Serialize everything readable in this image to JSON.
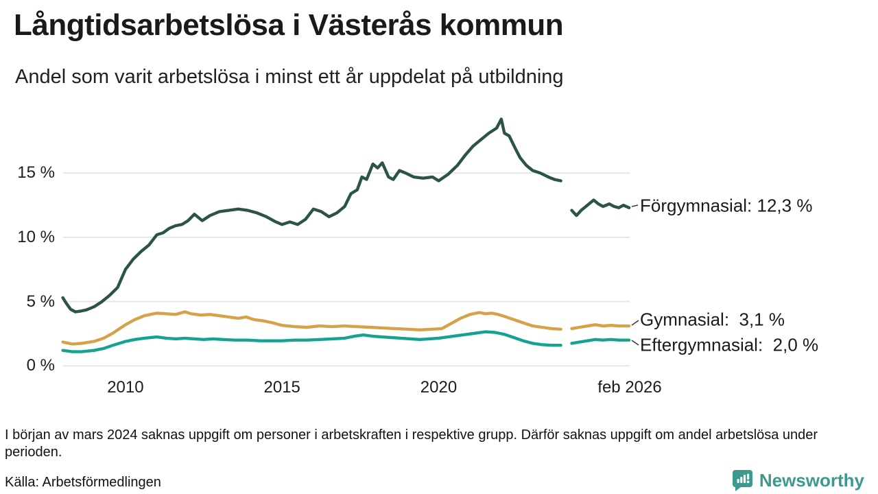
{
  "chart_data": {
    "type": "line",
    "title": "Långtidsarbetslösa i Västerås kommun",
    "subtitle": "Andel som varit arbetslösa i minst ett år uppdelat på utbildning",
    "unit": "%",
    "grid": "horizontal",
    "legend_position": "right-of-lines",
    "x_range": [
      2008,
      2026.1
    ],
    "y_range": [
      0,
      19.5
    ],
    "y_ticks": [
      {
        "value": 0,
        "label": "0 %"
      },
      {
        "value": 5,
        "label": "5 %"
      },
      {
        "value": 10,
        "label": "10 %"
      },
      {
        "value": 15,
        "label": "15 %"
      }
    ],
    "x_ticks": [
      {
        "value": 2010,
        "label": "2010"
      },
      {
        "value": 2015,
        "label": "2015"
      },
      {
        "value": 2020,
        "label": "2020"
      },
      {
        "value": 2026.1,
        "label": "feb 2026"
      }
    ],
    "gap": {
      "from": 2023.95,
      "to": 2024.2,
      "reason": "data saknas mars 2024"
    },
    "series": [
      {
        "name": "Förgymnasial",
        "label": "Förgymnasial: 12,3 %",
        "final_value": "12,3 %",
        "color": "#2b5348",
        "segments": [
          [
            [
              2008.0,
              5.3
            ],
            [
              2008.1,
              4.9
            ],
            [
              2008.25,
              4.4
            ],
            [
              2008.4,
              4.2
            ],
            [
              2008.55,
              4.25
            ],
            [
              2008.75,
              4.35
            ],
            [
              2009.0,
              4.6
            ],
            [
              2009.25,
              5.0
            ],
            [
              2009.5,
              5.5
            ],
            [
              2009.75,
              6.1
            ],
            [
              2010.0,
              7.5
            ],
            [
              2010.25,
              8.3
            ],
            [
              2010.5,
              8.9
            ],
            [
              2010.75,
              9.4
            ],
            [
              2011.0,
              10.2
            ],
            [
              2011.2,
              10.35
            ],
            [
              2011.4,
              10.7
            ],
            [
              2011.6,
              10.9
            ],
            [
              2011.8,
              11.0
            ],
            [
              2012.0,
              11.3
            ],
            [
              2012.2,
              11.8
            ],
            [
              2012.45,
              11.3
            ],
            [
              2012.7,
              11.7
            ],
            [
              2013.0,
              12.0
            ],
            [
              2013.3,
              12.1
            ],
            [
              2013.6,
              12.2
            ],
            [
              2013.9,
              12.1
            ],
            [
              2014.2,
              11.9
            ],
            [
              2014.5,
              11.6
            ],
            [
              2014.8,
              11.2
            ],
            [
              2015.0,
              11.0
            ],
            [
              2015.25,
              11.2
            ],
            [
              2015.5,
              11.0
            ],
            [
              2015.75,
              11.4
            ],
            [
              2016.0,
              12.2
            ],
            [
              2016.25,
              12.0
            ],
            [
              2016.5,
              11.6
            ],
            [
              2016.75,
              11.9
            ],
            [
              2017.0,
              12.4
            ],
            [
              2017.2,
              13.4
            ],
            [
              2017.4,
              13.7
            ],
            [
              2017.55,
              14.7
            ],
            [
              2017.7,
              14.5
            ],
            [
              2017.9,
              15.7
            ],
            [
              2018.05,
              15.4
            ],
            [
              2018.2,
              15.8
            ],
            [
              2018.4,
              14.7
            ],
            [
              2018.55,
              14.5
            ],
            [
              2018.75,
              15.2
            ],
            [
              2018.95,
              15.0
            ],
            [
              2019.2,
              14.7
            ],
            [
              2019.5,
              14.6
            ],
            [
              2019.8,
              14.7
            ],
            [
              2020.0,
              14.4
            ],
            [
              2020.3,
              14.9
            ],
            [
              2020.6,
              15.6
            ],
            [
              2020.85,
              16.4
            ],
            [
              2021.1,
              17.1
            ],
            [
              2021.35,
              17.6
            ],
            [
              2021.6,
              18.1
            ],
            [
              2021.85,
              18.5
            ],
            [
              2022.0,
              19.2
            ],
            [
              2022.1,
              18.1
            ],
            [
              2022.25,
              17.9
            ],
            [
              2022.45,
              16.9
            ],
            [
              2022.6,
              16.2
            ],
            [
              2022.8,
              15.6
            ],
            [
              2023.0,
              15.2
            ],
            [
              2023.25,
              15.0
            ],
            [
              2023.5,
              14.7
            ],
            [
              2023.7,
              14.5
            ],
            [
              2023.9,
              14.4
            ]
          ],
          [
            [
              2024.25,
              12.1
            ],
            [
              2024.4,
              11.7
            ],
            [
              2024.55,
              12.1
            ],
            [
              2024.75,
              12.5
            ],
            [
              2024.95,
              12.9
            ],
            [
              2025.1,
              12.6
            ],
            [
              2025.25,
              12.4
            ],
            [
              2025.45,
              12.6
            ],
            [
              2025.6,
              12.4
            ],
            [
              2025.75,
              12.3
            ],
            [
              2025.9,
              12.5
            ],
            [
              2026.08,
              12.3
            ]
          ]
        ]
      },
      {
        "name": "Gymnasial",
        "label": "Gymnasial:  3,1 %",
        "final_value": "3,1 %",
        "color": "#d6a249",
        "segments": [
          [
            [
              2008.0,
              1.85
            ],
            [
              2008.3,
              1.7
            ],
            [
              2008.6,
              1.75
            ],
            [
              2009.0,
              1.9
            ],
            [
              2009.3,
              2.15
            ],
            [
              2009.6,
              2.55
            ],
            [
              2010.0,
              3.2
            ],
            [
              2010.3,
              3.6
            ],
            [
              2010.6,
              3.9
            ],
            [
              2011.0,
              4.1
            ],
            [
              2011.3,
              4.05
            ],
            [
              2011.6,
              4.0
            ],
            [
              2011.9,
              4.2
            ],
            [
              2012.1,
              4.05
            ],
            [
              2012.4,
              3.95
            ],
            [
              2012.7,
              4.0
            ],
            [
              2013.0,
              3.9
            ],
            [
              2013.3,
              3.8
            ],
            [
              2013.6,
              3.7
            ],
            [
              2013.85,
              3.8
            ],
            [
              2014.1,
              3.6
            ],
            [
              2014.4,
              3.5
            ],
            [
              2014.7,
              3.35
            ],
            [
              2015.0,
              3.15
            ],
            [
              2015.4,
              3.05
            ],
            [
              2015.8,
              3.0
            ],
            [
              2016.2,
              3.1
            ],
            [
              2016.6,
              3.05
            ],
            [
              2017.0,
              3.1
            ],
            [
              2017.4,
              3.05
            ],
            [
              2017.8,
              3.0
            ],
            [
              2018.2,
              2.95
            ],
            [
              2018.6,
              2.9
            ],
            [
              2019.0,
              2.85
            ],
            [
              2019.4,
              2.8
            ],
            [
              2019.8,
              2.85
            ],
            [
              2020.1,
              2.9
            ],
            [
              2020.4,
              3.3
            ],
            [
              2020.7,
              3.7
            ],
            [
              2021.0,
              4.0
            ],
            [
              2021.3,
              4.15
            ],
            [
              2021.5,
              4.05
            ],
            [
              2021.7,
              4.1
            ],
            [
              2021.9,
              4.0
            ],
            [
              2022.1,
              3.85
            ],
            [
              2022.4,
              3.6
            ],
            [
              2022.7,
              3.35
            ],
            [
              2023.0,
              3.1
            ],
            [
              2023.3,
              3.0
            ],
            [
              2023.6,
              2.9
            ],
            [
              2023.9,
              2.85
            ]
          ],
          [
            [
              2024.25,
              2.9
            ],
            [
              2024.5,
              3.0
            ],
            [
              2024.75,
              3.1
            ],
            [
              2025.0,
              3.2
            ],
            [
              2025.25,
              3.1
            ],
            [
              2025.5,
              3.15
            ],
            [
              2025.75,
              3.1
            ],
            [
              2026.08,
              3.1
            ]
          ]
        ]
      },
      {
        "name": "Eftergymnasial",
        "label": "Eftergymnasial:  2,0 %",
        "final_value": "2,0 %",
        "color": "#16a291",
        "segments": [
          [
            [
              2008.0,
              1.2
            ],
            [
              2008.3,
              1.1
            ],
            [
              2008.6,
              1.1
            ],
            [
              2009.0,
              1.2
            ],
            [
              2009.3,
              1.35
            ],
            [
              2009.6,
              1.6
            ],
            [
              2010.0,
              1.9
            ],
            [
              2010.3,
              2.05
            ],
            [
              2010.6,
              2.15
            ],
            [
              2011.0,
              2.25
            ],
            [
              2011.3,
              2.15
            ],
            [
              2011.6,
              2.1
            ],
            [
              2011.9,
              2.15
            ],
            [
              2012.2,
              2.1
            ],
            [
              2012.5,
              2.05
            ],
            [
              2012.8,
              2.1
            ],
            [
              2013.1,
              2.05
            ],
            [
              2013.5,
              2.0
            ],
            [
              2013.9,
              2.0
            ],
            [
              2014.3,
              1.95
            ],
            [
              2014.7,
              1.95
            ],
            [
              2015.0,
              1.95
            ],
            [
              2015.4,
              2.0
            ],
            [
              2015.8,
              2.0
            ],
            [
              2016.2,
              2.05
            ],
            [
              2016.6,
              2.1
            ],
            [
              2017.0,
              2.15
            ],
            [
              2017.3,
              2.3
            ],
            [
              2017.6,
              2.4
            ],
            [
              2017.9,
              2.3
            ],
            [
              2018.2,
              2.25
            ],
            [
              2018.5,
              2.2
            ],
            [
              2018.8,
              2.15
            ],
            [
              2019.1,
              2.1
            ],
            [
              2019.4,
              2.05
            ],
            [
              2019.7,
              2.1
            ],
            [
              2020.0,
              2.15
            ],
            [
              2020.3,
              2.25
            ],
            [
              2020.6,
              2.35
            ],
            [
              2020.9,
              2.45
            ],
            [
              2021.2,
              2.55
            ],
            [
              2021.5,
              2.65
            ],
            [
              2021.8,
              2.6
            ],
            [
              2022.1,
              2.45
            ],
            [
              2022.4,
              2.2
            ],
            [
              2022.7,
              1.95
            ],
            [
              2023.0,
              1.75
            ],
            [
              2023.3,
              1.65
            ],
            [
              2023.6,
              1.6
            ],
            [
              2023.9,
              1.6
            ]
          ],
          [
            [
              2024.25,
              1.75
            ],
            [
              2024.5,
              1.85
            ],
            [
              2024.75,
              1.95
            ],
            [
              2025.0,
              2.05
            ],
            [
              2025.25,
              2.0
            ],
            [
              2025.5,
              2.05
            ],
            [
              2025.75,
              2.0
            ],
            [
              2026.08,
              2.0
            ]
          ]
        ]
      }
    ]
  },
  "footnote": "I början av mars 2024 saknas uppgift om personer i arbetskraften i respektive grupp. Därför saknas uppgift om andel arbetslösa under perioden.",
  "source_line": "Källa: Arbetsförmedlingen",
  "logo": {
    "text": "Newsworthy",
    "brand_color": "#3d988d"
  },
  "style": {
    "grid_color": "#e7e7e7",
    "text_color": "#1a1a1a"
  }
}
